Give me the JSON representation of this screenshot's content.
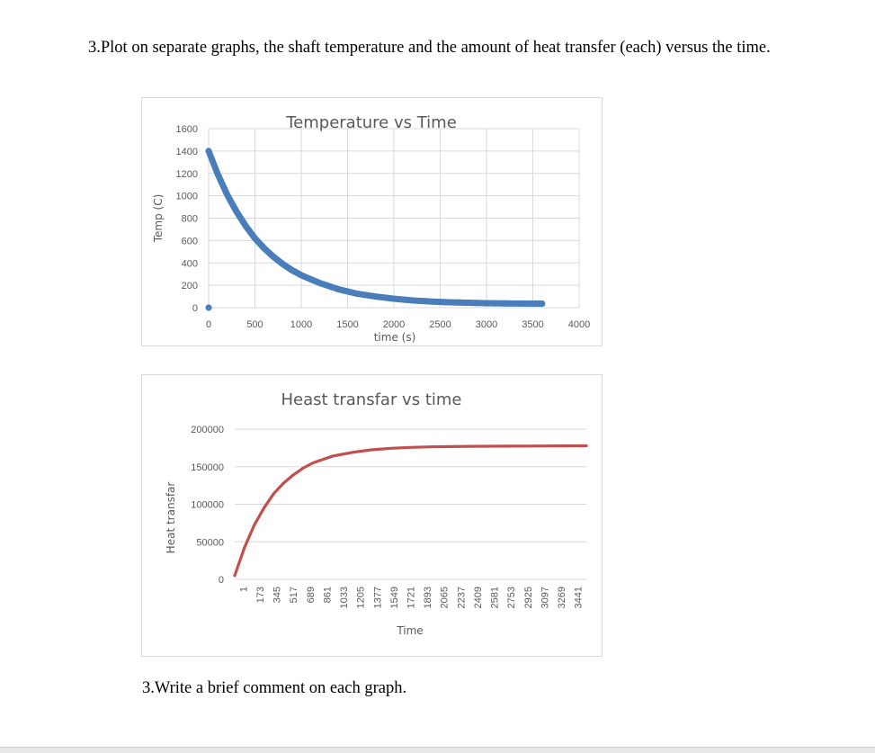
{
  "question_text": "3.Plot on separate graphs, the shaft temperature and the amount of heat transfer (each) versus the time.",
  "comment_text": "3.Write a brief comment on each graph.",
  "chart_data": [
    {
      "type": "scatter",
      "title": "Temperature vs Time",
      "xlabel": "time (s)",
      "ylabel": "Temp (C)",
      "xlim": [
        0,
        4000
      ],
      "ylim": [
        0,
        1600
      ],
      "xticks": [
        0,
        500,
        1000,
        1500,
        2000,
        2500,
        3000,
        3500,
        4000
      ],
      "yticks": [
        0,
        200,
        400,
        600,
        800,
        1000,
        1200,
        1400,
        1600
      ],
      "grid": true,
      "color": "#4a7ebb",
      "extra_point": {
        "x": 0,
        "y": 0
      },
      "series": [
        {
          "x": [
            0,
            100,
            200,
            300,
            400,
            500,
            600,
            700,
            800,
            900,
            1000,
            1200,
            1400,
            1600,
            1800,
            2000,
            2200,
            2400,
            2600,
            2800,
            3000,
            3200,
            3400,
            3600
          ],
          "y": [
            1400,
            1190,
            1010,
            860,
            730,
            620,
            530,
            455,
            390,
            335,
            290,
            220,
            165,
            125,
            100,
            80,
            65,
            55,
            48,
            44,
            40,
            38,
            37,
            36
          ]
        }
      ]
    },
    {
      "type": "line",
      "title": "Heast transfar vs time",
      "xlabel": "Time",
      "ylabel": "Heat transfar",
      "categories": [
        "1",
        "173",
        "345",
        "517",
        "689",
        "861",
        "1033",
        "1205",
        "1377",
        "1549",
        "1721",
        "1893",
        "2065",
        "2237",
        "2409",
        "2581",
        "2753",
        "2925",
        "3097",
        "3269",
        "3441"
      ],
      "x_range": [
        1,
        3600
      ],
      "ylim": [
        0,
        200000
      ],
      "yticks": [
        0,
        50000,
        100000,
        150000,
        200000
      ],
      "grid": true,
      "color": "#c0504d",
      "series": [
        {
          "x": [
            1,
            100,
            200,
            300,
            400,
            500,
            600,
            700,
            800,
            1000,
            1200,
            1400,
            1600,
            1800,
            2000,
            2200,
            2400,
            2600,
            2800,
            3000,
            3200,
            3400,
            3600
          ],
          "y": [
            5000,
            42000,
            72000,
            95000,
            114000,
            128000,
            139000,
            148000,
            155000,
            164000,
            169000,
            172500,
            174500,
            175700,
            176400,
            176800,
            177100,
            177300,
            177400,
            177500,
            177600,
            177700,
            177800
          ]
        }
      ]
    }
  ]
}
